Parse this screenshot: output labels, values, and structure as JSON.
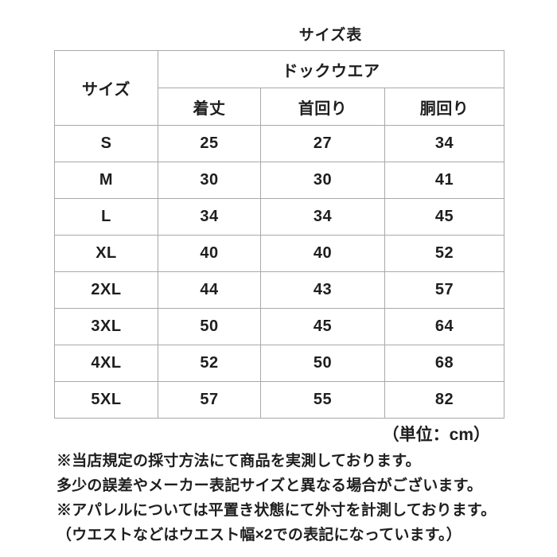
{
  "title": "サイズ表",
  "table": {
    "corner_header": "サイズ",
    "group_header": "ドックウエア",
    "columns": [
      "着丈",
      "首回り",
      "胴回り"
    ],
    "rows": [
      {
        "size": "S",
        "values": [
          "25",
          "27",
          "34"
        ]
      },
      {
        "size": "M",
        "values": [
          "30",
          "30",
          "41"
        ]
      },
      {
        "size": "L",
        "values": [
          "34",
          "34",
          "45"
        ]
      },
      {
        "size": "XL",
        "values": [
          "40",
          "40",
          "52"
        ]
      },
      {
        "size": "2XL",
        "values": [
          "44",
          "43",
          "57"
        ]
      },
      {
        "size": "3XL",
        "values": [
          "50",
          "45",
          "64"
        ]
      },
      {
        "size": "4XL",
        "values": [
          "52",
          "50",
          "68"
        ]
      },
      {
        "size": "5XL",
        "values": [
          "57",
          "55",
          "82"
        ]
      }
    ]
  },
  "unit_label": "（単位：cm）",
  "notes": [
    "※当店規定の採寸方法にて商品を実測しております。",
    "多少の誤差やメーカー表記サイズと異なる場合がございます。",
    "※アパレルについては平置き状態にて外寸を計測しております。",
    "（ウエストなどはウエスト幅×2での表記になっています。）"
  ],
  "colors": {
    "text": "#1e1e1e",
    "border": "#a9a9a9",
    "background": "#ffffff"
  }
}
